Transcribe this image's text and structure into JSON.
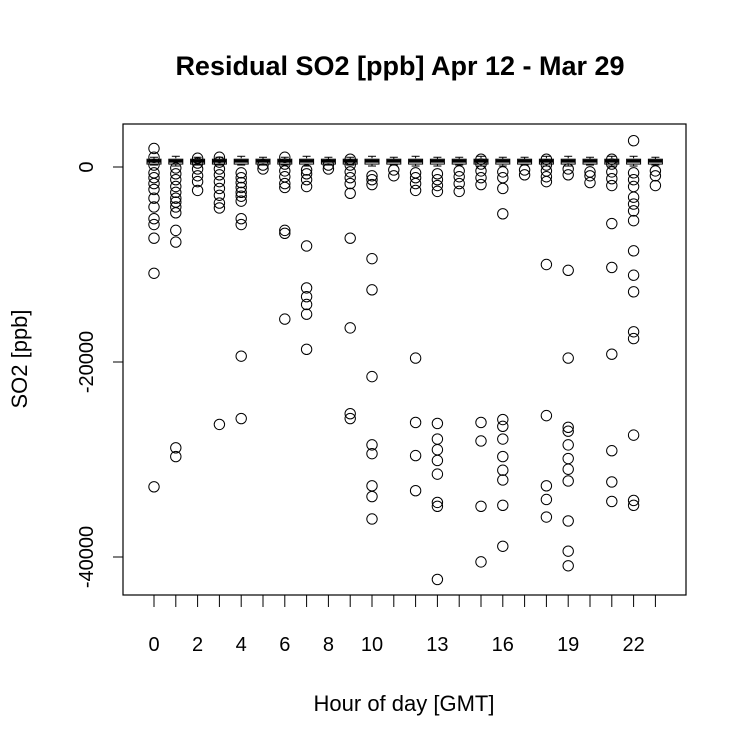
{
  "chart_data": {
    "type": "boxplot",
    "title": "Residual SO2 [ppb] Apr 12 - Mar 29",
    "xlabel": "Hour of day [GMT]",
    "ylabel": "SO2 [ppb]",
    "ylim": [
      -44000,
      4000
    ],
    "y_ticks": [
      0,
      -20000,
      -40000
    ],
    "y_tick_labels": [
      "0",
      "-20000",
      "-40000"
    ],
    "categories": [
      0,
      1,
      2,
      3,
      4,
      5,
      6,
      7,
      8,
      9,
      10,
      11,
      12,
      13,
      14,
      15,
      16,
      17,
      18,
      19,
      20,
      21,
      22,
      23
    ],
    "x_tick_labels": [
      "0",
      "2",
      "4",
      "6",
      "8",
      "10",
      "13",
      "16",
      "19",
      "22"
    ],
    "x_tick_label_hours": [
      0,
      2,
      4,
      6,
      8,
      10,
      13,
      16,
      19,
      22
    ],
    "grid": false,
    "boxes": [
      {
        "hour": 0,
        "q1": 300,
        "median": 600,
        "q3": 800,
        "whisk_lo": 200,
        "whisk_hi": 1000
      },
      {
        "hour": 1,
        "q1": 300,
        "median": 600,
        "q3": 800,
        "whisk_lo": 100,
        "whisk_hi": 1100
      },
      {
        "hour": 2,
        "q1": 300,
        "median": 600,
        "q3": 800,
        "whisk_lo": 200,
        "whisk_hi": 1000
      },
      {
        "hour": 3,
        "q1": 300,
        "median": 600,
        "q3": 800,
        "whisk_lo": 200,
        "whisk_hi": 1000
      },
      {
        "hour": 4,
        "q1": 300,
        "median": 600,
        "q3": 800,
        "whisk_lo": 200,
        "whisk_hi": 1100
      },
      {
        "hour": 5,
        "q1": 300,
        "median": 600,
        "q3": 800,
        "whisk_lo": 200,
        "whisk_hi": 1000
      },
      {
        "hour": 6,
        "q1": 300,
        "median": 600,
        "q3": 800,
        "whisk_lo": 200,
        "whisk_hi": 1000
      },
      {
        "hour": 7,
        "q1": 300,
        "median": 600,
        "q3": 800,
        "whisk_lo": 100,
        "whisk_hi": 1100
      },
      {
        "hour": 8,
        "q1": 300,
        "median": 600,
        "q3": 800,
        "whisk_lo": 200,
        "whisk_hi": 1000
      },
      {
        "hour": 9,
        "q1": 300,
        "median": 600,
        "q3": 800,
        "whisk_lo": 200,
        "whisk_hi": 1000
      },
      {
        "hour": 10,
        "q1": 300,
        "median": 600,
        "q3": 800,
        "whisk_lo": 100,
        "whisk_hi": 1100
      },
      {
        "hour": 11,
        "q1": 300,
        "median": 600,
        "q3": 800,
        "whisk_lo": 200,
        "whisk_hi": 1000
      },
      {
        "hour": 12,
        "q1": 300,
        "median": 600,
        "q3": 800,
        "whisk_lo": 100,
        "whisk_hi": 1100
      },
      {
        "hour": 13,
        "q1": 300,
        "median": 600,
        "q3": 800,
        "whisk_lo": 100,
        "whisk_hi": 1000
      },
      {
        "hour": 14,
        "q1": 300,
        "median": 600,
        "q3": 800,
        "whisk_lo": 200,
        "whisk_hi": 1000
      },
      {
        "hour": 15,
        "q1": 300,
        "median": 600,
        "q3": 800,
        "whisk_lo": 100,
        "whisk_hi": 1100
      },
      {
        "hour": 16,
        "q1": 300,
        "median": 600,
        "q3": 800,
        "whisk_lo": 100,
        "whisk_hi": 1000
      },
      {
        "hour": 17,
        "q1": 300,
        "median": 600,
        "q3": 800,
        "whisk_lo": 200,
        "whisk_hi": 1000
      },
      {
        "hour": 18,
        "q1": 300,
        "median": 600,
        "q3": 800,
        "whisk_lo": 100,
        "whisk_hi": 1100
      },
      {
        "hour": 19,
        "q1": 300,
        "median": 600,
        "q3": 800,
        "whisk_lo": 100,
        "whisk_hi": 1100
      },
      {
        "hour": 20,
        "q1": 300,
        "median": 600,
        "q3": 800,
        "whisk_lo": 200,
        "whisk_hi": 1000
      },
      {
        "hour": 21,
        "q1": 300,
        "median": 600,
        "q3": 800,
        "whisk_lo": 100,
        "whisk_hi": 1100
      },
      {
        "hour": 22,
        "q1": 300,
        "median": 600,
        "q3": 800,
        "whisk_lo": 100,
        "whisk_hi": 1100
      },
      {
        "hour": 23,
        "q1": 300,
        "median": 600,
        "q3": 800,
        "whisk_lo": 200,
        "whisk_hi": 1000
      }
    ],
    "outliers": [
      {
        "hour": 0,
        "y": [
          1900,
          1000,
          200,
          -600,
          -1100,
          -1700,
          -2300,
          -3200,
          -4100,
          -5300,
          -5900,
          -7300,
          -10900,
          -32800
        ]
      },
      {
        "hour": 1,
        "y": [
          -100,
          -700,
          -1300,
          -2000,
          -2600,
          -3200,
          -3600,
          -4100,
          -4700,
          -6500,
          -7700,
          -28800,
          -29700
        ]
      },
      {
        "hour": 2,
        "y": [
          900,
          400,
          -200,
          -900,
          -1500,
          -2400
        ]
      },
      {
        "hour": 3,
        "y": [
          1000,
          500,
          -200,
          -800,
          -1500,
          -2200,
          -2900,
          -3700,
          -4200,
          -26400
        ]
      },
      {
        "hour": 4,
        "y": [
          -600,
          -1100,
          -1600,
          -2100,
          -2600,
          -3000,
          -3500,
          -5300,
          -5900,
          -19400,
          -25800
        ]
      },
      {
        "hour": 5,
        "y": [
          200,
          -200
        ]
      },
      {
        "hour": 6,
        "y": [
          1000,
          300,
          -400,
          -1000,
          -1700,
          -2100,
          -6500,
          -6800,
          -15600
        ]
      },
      {
        "hour": 7,
        "y": [
          -300,
          -700,
          -1300,
          -2000,
          -8100,
          -12400,
          -13300,
          -14100,
          -15100,
          -18700
        ]
      },
      {
        "hour": 8,
        "y": [
          200,
          -200
        ]
      },
      {
        "hour": 9,
        "y": [
          800,
          200,
          -500,
          -1100,
          -1700,
          -2700,
          -7300,
          -16500,
          -25300,
          -25800
        ]
      },
      {
        "hour": 10,
        "y": [
          -900,
          -1300,
          -1800,
          -9400,
          -12600,
          -21500,
          -28500,
          -29400,
          -32700,
          -33800,
          -36100
        ]
      },
      {
        "hour": 11,
        "y": [
          -300,
          -900
        ]
      },
      {
        "hour": 12,
        "y": [
          -600,
          -1100,
          -1700,
          -2400,
          -19600,
          -26200,
          -29600,
          -33200
        ]
      },
      {
        "hour": 13,
        "y": [
          -700,
          -1300,
          -1900,
          -2500,
          -26300,
          -27900,
          -29000,
          -30100,
          -31500,
          -34400,
          -34800,
          -42300
        ]
      },
      {
        "hour": 14,
        "y": [
          -400,
          -1000,
          -1700,
          -2500
        ]
      },
      {
        "hour": 15,
        "y": [
          800,
          300,
          -400,
          -1100,
          -1800,
          -26200,
          -28100,
          -34800,
          -40500
        ]
      },
      {
        "hour": 16,
        "y": [
          -500,
          -1100,
          -2200,
          -4800,
          -25900,
          -26600,
          -27900,
          -29700,
          -31100,
          -32100,
          -34700,
          -38900
        ]
      },
      {
        "hour": 17,
        "y": [
          -300,
          -800
        ]
      },
      {
        "hour": 18,
        "y": [
          800,
          200,
          -400,
          -1000,
          -1500,
          -10000,
          -25500,
          -32700,
          -34100,
          -35900
        ]
      },
      {
        "hour": 19,
        "y": [
          -200,
          -800,
          -10600,
          -19600,
          -26700,
          -27100,
          -28500,
          -29900,
          -31000,
          -32200,
          -36300,
          -39400,
          -40900
        ]
      },
      {
        "hour": 20,
        "y": [
          -500,
          -900,
          -1600
        ]
      },
      {
        "hour": 21,
        "y": [
          800,
          300,
          -500,
          -1200,
          -1900,
          -5800,
          -10300,
          -19200,
          -29100,
          -32300,
          -34300
        ]
      },
      {
        "hour": 22,
        "y": [
          2700,
          -600,
          -1300,
          -2000,
          -3100,
          -3800,
          -4500,
          -5500,
          -8600,
          -11100,
          -12800,
          -16900,
          -17600,
          -27500,
          -34200,
          -34700
        ]
      },
      {
        "hour": 23,
        "y": [
          -400,
          -900,
          -1900
        ]
      }
    ]
  }
}
